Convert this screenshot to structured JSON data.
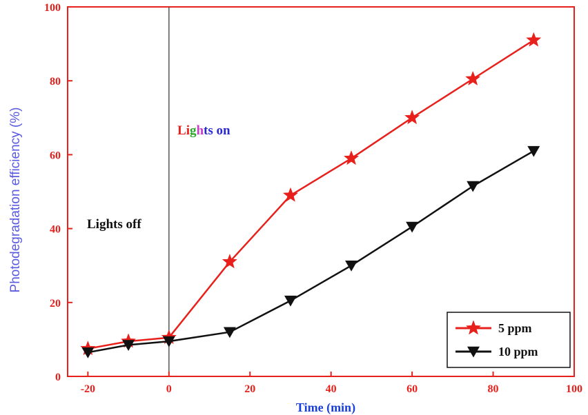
{
  "chart_data": {
    "type": "line",
    "xlabel": "Time (min)",
    "ylabel": "Photodegradation efficiency (%)",
    "xlim": [
      -25,
      100
    ],
    "ylim": [
      0,
      100
    ],
    "xticks": [
      -20,
      0,
      20,
      40,
      60,
      80,
      100
    ],
    "yticks": [
      0,
      20,
      40,
      60,
      80,
      100
    ],
    "xtick_labels": [
      "-20",
      "0",
      "20",
      "40",
      "60",
      "80",
      "100"
    ],
    "ytick_labels": [
      "0",
      "20",
      "40",
      "60",
      "80",
      "100"
    ],
    "grid": false,
    "legend_position": "bottom-right",
    "axis_color": "#e8201c",
    "series": [
      {
        "name": "5 ppm",
        "color": "#e8201c",
        "marker": "star",
        "x": [
          -20,
          -10,
          0,
          15,
          30,
          45,
          60,
          75,
          90
        ],
        "y": [
          7.5,
          9.5,
          10.5,
          31,
          49,
          59,
          70,
          80.5,
          91
        ]
      },
      {
        "name": "10 ppm",
        "color": "#111111",
        "marker": "triangle-down",
        "x": [
          -20,
          -10,
          0,
          15,
          30,
          45,
          60,
          75,
          90
        ],
        "y": [
          6.5,
          8.5,
          9.5,
          12,
          20.5,
          30,
          40.5,
          51.5,
          61
        ]
      }
    ],
    "reference_line": {
      "x": 0,
      "color": "#555555"
    },
    "annotations": [
      {
        "text": "Lights off",
        "color": "#111111"
      },
      {
        "text": "Lights on",
        "letter_colors": [
          "#e8201c",
          "#e8201c",
          "#2aa52a",
          "#c83cc8",
          "#2a2ad0",
          "#2a2ad0",
          "#1aa0d8",
          "#2a2ad0",
          "#2a2ad0"
        ]
      }
    ]
  }
}
